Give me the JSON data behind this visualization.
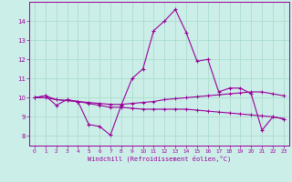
{
  "xlabel": "Windchill (Refroidissement éolien,°C)",
  "background_color": "#cceee8",
  "grid_color": "#aaddcc",
  "line_color": "#990099",
  "x_values": [
    0,
    1,
    2,
    3,
    4,
    5,
    6,
    7,
    8,
    9,
    10,
    11,
    12,
    13,
    14,
    15,
    16,
    17,
    18,
    19,
    20,
    21,
    22,
    23
  ],
  "line1_y": [
    10.0,
    10.1,
    9.6,
    9.9,
    9.8,
    8.6,
    8.5,
    8.05,
    9.6,
    11.0,
    11.5,
    13.5,
    14.0,
    14.6,
    13.4,
    11.9,
    12.0,
    10.3,
    10.5,
    10.5,
    10.2,
    8.3,
    9.0,
    8.9
  ],
  "line2_y": [
    10.0,
    10.1,
    9.9,
    9.85,
    9.8,
    9.75,
    9.7,
    9.65,
    9.65,
    9.7,
    9.75,
    9.8,
    9.9,
    9.95,
    10.0,
    10.05,
    10.1,
    10.15,
    10.2,
    10.25,
    10.3,
    10.3,
    10.2,
    10.1
  ],
  "line3_y": [
    10.0,
    10.0,
    9.9,
    9.85,
    9.8,
    9.7,
    9.6,
    9.5,
    9.5,
    9.45,
    9.4,
    9.4,
    9.4,
    9.4,
    9.4,
    9.35,
    9.3,
    9.25,
    9.2,
    9.15,
    9.1,
    9.05,
    9.0,
    8.9
  ],
  "ylim": [
    7.5,
    15.0
  ],
  "xlim": [
    -0.5,
    23.5
  ],
  "yticks": [
    8,
    9,
    10,
    11,
    12,
    13,
    14
  ],
  "xticks": [
    0,
    1,
    2,
    3,
    4,
    5,
    6,
    7,
    8,
    9,
    10,
    11,
    12,
    13,
    14,
    15,
    16,
    17,
    18,
    19,
    20,
    21,
    22,
    23
  ]
}
